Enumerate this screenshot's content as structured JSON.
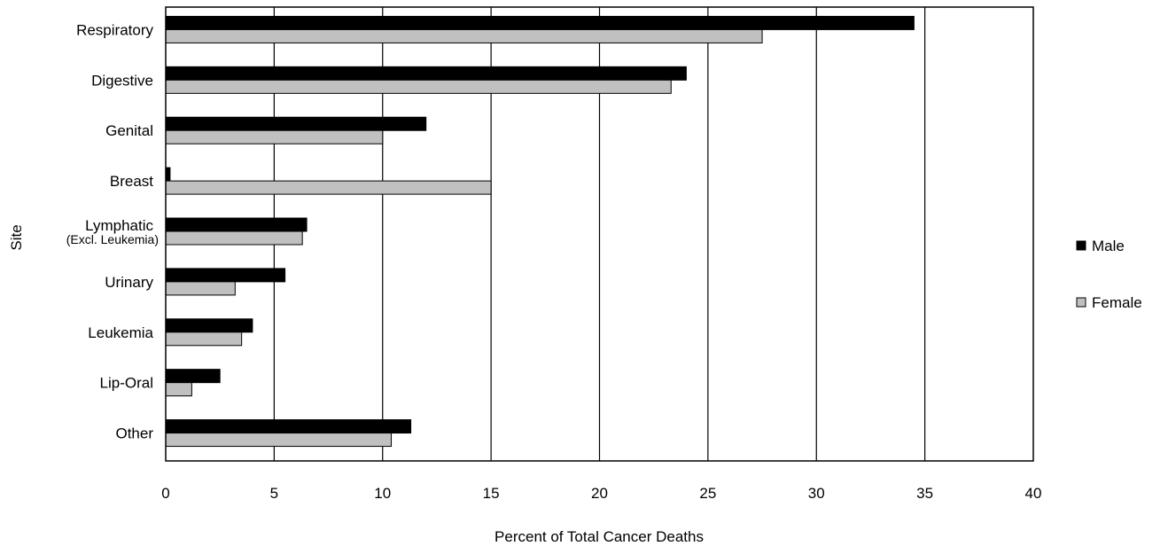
{
  "chart_data": {
    "type": "bar",
    "orientation": "horizontal",
    "title": "",
    "xlabel": "Percent of Total Cancer Deaths",
    "ylabel": "Site",
    "xlim": [
      0,
      40
    ],
    "x_ticks": [
      "0",
      "5",
      "10",
      "15",
      "20",
      "25",
      "30",
      "35",
      "40"
    ],
    "grid": "vertical",
    "legend_position": "right",
    "categories": [
      {
        "label": "Respiratory",
        "sublabel": ""
      },
      {
        "label": "Digestive",
        "sublabel": ""
      },
      {
        "label": "Genital",
        "sublabel": ""
      },
      {
        "label": "Breast",
        "sublabel": ""
      },
      {
        "label": "Lymphatic",
        "sublabel": "(Excl. Leukemia)"
      },
      {
        "label": "Urinary",
        "sublabel": ""
      },
      {
        "label": "Leukemia",
        "sublabel": ""
      },
      {
        "label": "Lip-Oral",
        "sublabel": ""
      },
      {
        "label": "Other",
        "sublabel": ""
      }
    ],
    "series": [
      {
        "name": "Male",
        "color": "#000000",
        "values": [
          34.5,
          24.0,
          12.0,
          0.2,
          6.5,
          5.5,
          4.0,
          2.5,
          11.3
        ]
      },
      {
        "name": "Female",
        "color": "#c0c0c0",
        "values": [
          27.5,
          23.3,
          10.0,
          15.0,
          6.3,
          3.2,
          3.5,
          1.2,
          10.4
        ]
      }
    ]
  }
}
